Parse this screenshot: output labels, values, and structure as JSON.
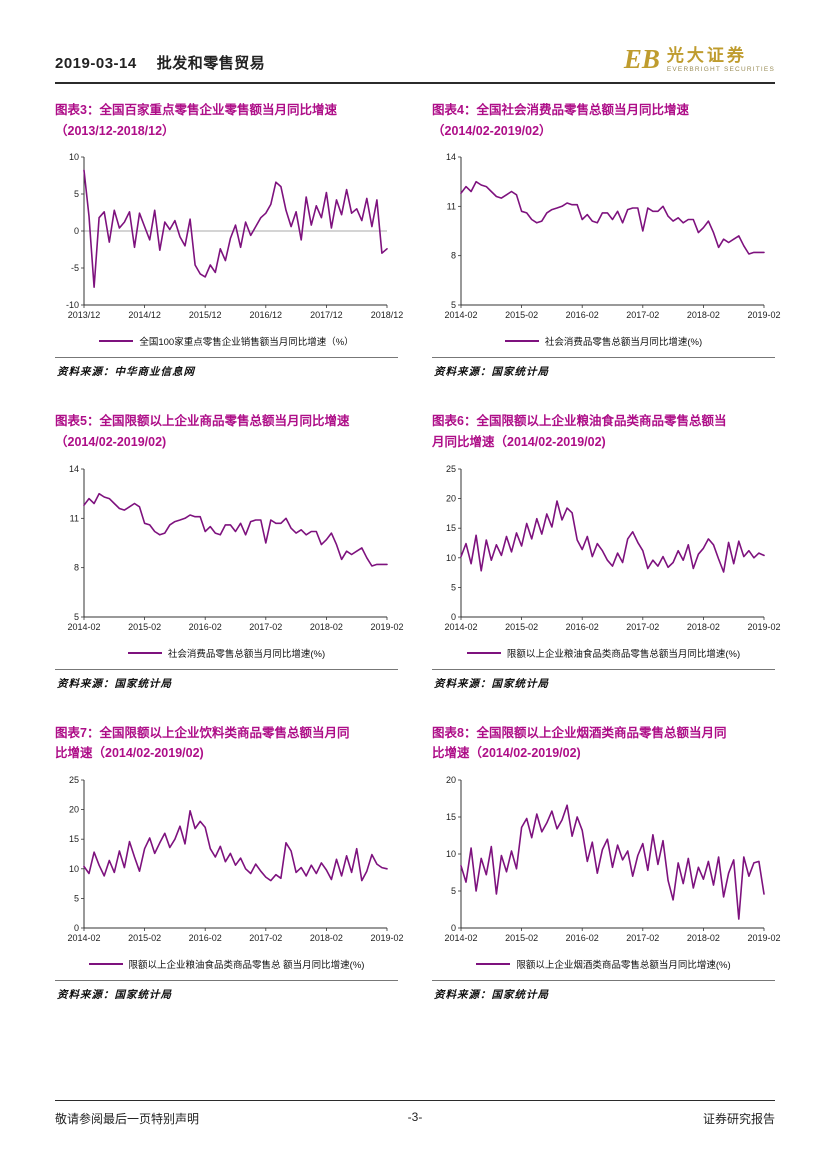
{
  "page": {
    "header": {
      "date": "2019-03-14",
      "section": "批发和零售贸易"
    },
    "logo": {
      "symbol": "EB",
      "name": "光大证券",
      "subtitle": "EVERBRIGHT SECURITIES"
    },
    "footer": {
      "left": "敬请参阅最后一页特别声明",
      "center": "-3-",
      "right": "证券研究报告"
    }
  },
  "colors": {
    "title": "#ae0e88",
    "line": "#7e127e",
    "logo_gold": "#bf9c2e",
    "axis": "#333333",
    "zero_line": "#aaaaaa"
  },
  "chart_data": [
    {
      "type": "line",
      "title_lines": [
        "图表3：全国百家重点零售企业零售额当月同比增速",
        "（2013/12-2018/12）"
      ],
      "legend": "全国100家重点零售企业销售额当月同比增速（%）",
      "source": "资料来源：中华商业信息网",
      "x_frequency": "monthly",
      "xticks": [
        "2013/12",
        "2014/12",
        "2015/12",
        "2016/12",
        "2017/12",
        "2018/12"
      ],
      "yticks": [
        -10,
        -5,
        0,
        5,
        10
      ],
      "ylim": [
        -10,
        10
      ],
      "grid": false,
      "legend_position": "bottom",
      "values": [
        8.2,
        2.0,
        -7.6,
        1.8,
        2.6,
        -1.5,
        2.8,
        0.4,
        1.2,
        2.6,
        -2.2,
        2.4,
        0.6,
        -1.2,
        2.8,
        -2.6,
        1.2,
        0.2,
        1.4,
        -0.8,
        -2.0,
        1.6,
        -4.6,
        -5.8,
        -6.2,
        -4.6,
        -5.6,
        -2.4,
        -4.0,
        -1.0,
        0.8,
        -2.2,
        1.2,
        -0.6,
        0.6,
        1.8,
        2.4,
        3.6,
        6.6,
        6.0,
        2.8,
        0.6,
        2.6,
        -1.2,
        4.6,
        0.8,
        3.4,
        1.8,
        5.2,
        0.4,
        4.2,
        2.2,
        5.6,
        2.4,
        3.0,
        1.4,
        4.4,
        0.6,
        4.2,
        -3.0,
        -2.4
      ]
    },
    {
      "type": "line",
      "title_lines": [
        "图表4：全国社会消费品零售总额当月同比增速",
        "（2014/02-2019/02）"
      ],
      "legend": "社会消费品零售总额当月同比增速(%)",
      "source": "资料来源：国家统计局",
      "x_frequency": "monthly",
      "xticks": [
        "2014-02",
        "2015-02",
        "2016-02",
        "2017-02",
        "2018-02",
        "2019-02"
      ],
      "yticks": [
        5,
        8,
        11,
        14
      ],
      "ylim": [
        5,
        14
      ],
      "grid": false,
      "legend_position": "bottom",
      "values": [
        11.8,
        12.2,
        11.9,
        12.5,
        12.3,
        12.2,
        11.9,
        11.6,
        11.5,
        11.7,
        11.9,
        11.7,
        10.7,
        10.6,
        10.2,
        10.0,
        10.1,
        10.6,
        10.8,
        10.9,
        11.0,
        11.2,
        11.1,
        11.1,
        10.2,
        10.5,
        10.1,
        10.0,
        10.6,
        10.6,
        10.2,
        10.7,
        10.0,
        10.8,
        10.9,
        10.9,
        9.5,
        10.9,
        10.7,
        10.7,
        11.0,
        10.4,
        10.1,
        10.3,
        10.0,
        10.2,
        10.2,
        9.4,
        9.7,
        10.1,
        9.4,
        8.5,
        9.0,
        8.8,
        9.0,
        9.2,
        8.6,
        8.1,
        8.2,
        8.2,
        8.2
      ]
    },
    {
      "type": "line",
      "title_lines": [
        "图表5：全国限额以上企业商品零售总额当月同比增速",
        "（2014/02-2019/02)"
      ],
      "legend": "社会消费品零售总额当月同比增速(%)",
      "source": "资料来源：国家统计局",
      "x_frequency": "monthly",
      "xticks": [
        "2014-02",
        "2015-02",
        "2016-02",
        "2017-02",
        "2018-02",
        "2019-02"
      ],
      "yticks": [
        5,
        8,
        11,
        14
      ],
      "ylim": [
        5,
        14
      ],
      "grid": false,
      "legend_position": "bottom",
      "values": [
        11.8,
        12.2,
        11.9,
        12.5,
        12.3,
        12.2,
        11.9,
        11.6,
        11.5,
        11.7,
        11.9,
        11.7,
        10.7,
        10.6,
        10.2,
        10.0,
        10.1,
        10.6,
        10.8,
        10.9,
        11.0,
        11.2,
        11.1,
        11.1,
        10.2,
        10.5,
        10.1,
        10.0,
        10.6,
        10.6,
        10.2,
        10.7,
        10.0,
        10.8,
        10.9,
        10.9,
        9.5,
        10.9,
        10.7,
        10.7,
        11.0,
        10.4,
        10.1,
        10.3,
        10.0,
        10.2,
        10.2,
        9.4,
        9.7,
        10.1,
        9.4,
        8.5,
        9.0,
        8.8,
        9.0,
        9.2,
        8.6,
        8.1,
        8.2,
        8.2,
        8.2
      ]
    },
    {
      "type": "line",
      "title_lines": [
        "图表6：全国限额以上企业粮油食品类商品零售总额当",
        "月同比增速（2014/02-2019/02)"
      ],
      "legend": "限额以上企业粮油食品类商品零售总额当月同比增速(%)",
      "source": "资料来源：国家统计局",
      "x_frequency": "monthly",
      "xticks": [
        "2014-02",
        "2015-02",
        "2016-02",
        "2017-02",
        "2018-02",
        "2019-02"
      ],
      "yticks": [
        0,
        5,
        10,
        15,
        20,
        25
      ],
      "ylim": [
        0,
        25
      ],
      "grid": false,
      "legend_position": "bottom",
      "values": [
        10.2,
        12.4,
        9.0,
        13.8,
        7.8,
        13.0,
        9.6,
        12.2,
        10.4,
        13.6,
        11.0,
        14.2,
        12.0,
        15.8,
        13.2,
        16.6,
        14.0,
        17.4,
        15.2,
        19.6,
        16.4,
        18.4,
        17.6,
        13.0,
        11.4,
        13.6,
        10.2,
        12.4,
        11.2,
        9.6,
        8.6,
        10.8,
        9.2,
        13.2,
        14.4,
        12.6,
        11.2,
        8.2,
        9.6,
        8.6,
        10.2,
        8.4,
        9.2,
        11.2,
        9.6,
        12.2,
        8.2,
        10.6,
        11.6,
        13.2,
        12.2,
        9.8,
        7.6,
        12.6,
        9.0,
        12.8,
        10.2,
        11.2,
        10.0,
        10.8,
        10.4
      ]
    },
    {
      "type": "line",
      "title_lines": [
        "图表7：全国限额以上企业饮料类商品零售总额当月同",
        "比增速（2014/02-2019/02)"
      ],
      "legend": "限额以上企业粮油食品类商品零售总 额当月同比增速(%)",
      "source": "资料来源：国家统计局",
      "x_frequency": "monthly",
      "xticks": [
        "2014-02",
        "2015-02",
        "2016-02",
        "2017-02",
        "2018-02",
        "2019-02"
      ],
      "yticks": [
        0,
        5,
        10,
        15,
        20,
        25
      ],
      "ylim": [
        0,
        25
      ],
      "grid": false,
      "legend_position": "bottom",
      "values": [
        10.4,
        9.2,
        12.8,
        10.6,
        8.8,
        11.4,
        9.4,
        13.0,
        10.2,
        14.6,
        12.0,
        9.6,
        13.4,
        15.2,
        12.6,
        14.4,
        16.0,
        13.6,
        15.0,
        17.2,
        14.2,
        19.8,
        16.8,
        18.0,
        17.0,
        13.4,
        12.0,
        13.8,
        11.2,
        12.6,
        10.6,
        11.8,
        10.0,
        9.2,
        10.8,
        9.6,
        8.6,
        8.0,
        9.0,
        8.4,
        14.4,
        13.0,
        9.4,
        10.2,
        8.8,
        10.6,
        9.2,
        11.0,
        9.8,
        8.2,
        11.6,
        8.8,
        12.2,
        9.4,
        13.4,
        8.0,
        9.6,
        12.4,
        10.8,
        10.2,
        10.0
      ]
    },
    {
      "type": "line",
      "title_lines": [
        "图表8：全国限额以上企业烟酒类商品零售总额当月同",
        "比增速（2014/02-2019/02)"
      ],
      "legend": "限额以上企业烟酒类商品零售总额当月同比增速(%)",
      "source": "资料来源：国家统计局",
      "x_frequency": "monthly",
      "xticks": [
        "2014-02",
        "2015-02",
        "2016-02",
        "2017-02",
        "2018-02",
        "2019-02"
      ],
      "yticks": [
        0,
        5,
        10,
        15,
        20
      ],
      "ylim": [
        0,
        20
      ],
      "grid": false,
      "legend_position": "bottom",
      "values": [
        8.4,
        6.2,
        10.8,
        5.0,
        9.4,
        7.2,
        11.0,
        4.6,
        9.8,
        7.6,
        10.4,
        8.0,
        13.6,
        14.8,
        12.2,
        15.4,
        13.0,
        14.2,
        15.8,
        13.4,
        14.6,
        16.6,
        12.4,
        15.0,
        13.2,
        9.0,
        11.6,
        7.4,
        10.6,
        12.0,
        8.2,
        11.2,
        9.2,
        10.4,
        7.0,
        9.8,
        11.4,
        7.8,
        12.6,
        8.6,
        11.8,
        6.4,
        3.8,
        8.8,
        6.0,
        9.4,
        5.4,
        8.2,
        6.6,
        9.0,
        5.8,
        9.6,
        4.2,
        7.4,
        9.2,
        1.2,
        9.6,
        7.0,
        8.8,
        9.0,
        4.6
      ]
    }
  ]
}
